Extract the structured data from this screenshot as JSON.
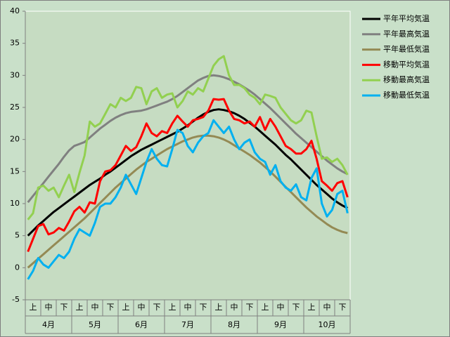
{
  "chart_data": {
    "type": "line",
    "categories": [
      null,
      "上",
      null,
      null,
      "中",
      null,
      null,
      "下",
      null,
      null,
      "上",
      null,
      null,
      "中",
      null,
      null,
      "下",
      null,
      null,
      "上",
      null,
      null,
      "中",
      null,
      null,
      "下",
      null,
      null,
      "上",
      null,
      null,
      "中",
      null,
      null,
      "下",
      null,
      null,
      "上",
      null,
      null,
      "中",
      null,
      null,
      "下",
      null,
      null,
      "上",
      null,
      null,
      "中",
      null,
      null,
      "下",
      null,
      null,
      "上",
      null,
      null,
      "中",
      null,
      null,
      "下",
      null
    ],
    "months": [
      "4月",
      "5月",
      "6月",
      "7月",
      "8月",
      "9月",
      "10月"
    ],
    "ylim": [
      -5,
      40
    ],
    "yticks": [
      -5,
      0,
      5,
      10,
      15,
      20,
      25,
      30,
      35,
      40
    ],
    "grid": false,
    "series": [
      {
        "name": "平年平均気温",
        "color": "#000000",
        "values": [
          5.0,
          5.8,
          6.6,
          7.3,
          8.0,
          8.7,
          9.3,
          9.9,
          10.5,
          11.1,
          11.7,
          12.3,
          12.9,
          13.4,
          13.9,
          14.5,
          15.0,
          15.6,
          16.2,
          16.8,
          17.4,
          17.9,
          18.4,
          18.8,
          19.2,
          19.6,
          20.0,
          20.4,
          20.8,
          21.2,
          21.7,
          22.2,
          22.8,
          23.4,
          23.9,
          24.3,
          24.6,
          24.7,
          24.6,
          24.4,
          24.1,
          23.7,
          23.2,
          22.6,
          22.0,
          21.3,
          20.6,
          19.9,
          19.2,
          18.4,
          17.6,
          16.9,
          16.1,
          15.3,
          14.5,
          13.7,
          12.9,
          12.2,
          11.5,
          10.8,
          10.2,
          9.7,
          9.3
        ]
      },
      {
        "name": "平年最高気温",
        "color": "#808080",
        "values": [
          10.2,
          11.2,
          12.2,
          13.2,
          14.2,
          15.2,
          16.2,
          17.3,
          18.3,
          19.0,
          19.3,
          19.6,
          20.3,
          21.0,
          21.7,
          22.3,
          22.9,
          23.4,
          23.8,
          24.1,
          24.3,
          24.4,
          24.5,
          24.7,
          25.0,
          25.3,
          25.6,
          25.9,
          26.3,
          26.8,
          27.4,
          28.0,
          28.6,
          29.2,
          29.6,
          29.9,
          30.0,
          29.9,
          29.7,
          29.4,
          29.0,
          28.6,
          28.1,
          27.6,
          27.0,
          26.3,
          25.6,
          24.9,
          24.1,
          23.3,
          22.5,
          21.7,
          20.9,
          20.2,
          19.5,
          18.8,
          18.1,
          17.4,
          16.7,
          16.1,
          15.5,
          15.0,
          14.6
        ]
      },
      {
        "name": "平年最低気温",
        "color": "#948a54",
        "values": [
          0.0,
          0.7,
          1.4,
          2.1,
          2.8,
          3.5,
          4.2,
          4.9,
          5.6,
          6.3,
          7.0,
          7.7,
          8.5,
          9.3,
          10.1,
          10.9,
          11.7,
          12.5,
          13.2,
          13.9,
          14.6,
          15.3,
          15.9,
          16.5,
          17.0,
          17.5,
          18.0,
          18.5,
          18.9,
          19.3,
          19.7,
          20.0,
          20.3,
          20.5,
          20.6,
          20.6,
          20.5,
          20.3,
          20.0,
          19.6,
          19.1,
          18.6,
          18.1,
          17.6,
          17.0,
          16.4,
          15.7,
          15.0,
          14.2,
          13.4,
          12.6,
          11.8,
          11.0,
          10.2,
          9.4,
          8.7,
          8.0,
          7.4,
          6.8,
          6.3,
          5.9,
          5.6,
          5.4
        ]
      },
      {
        "name": "移動平均気温",
        "color": "#ff0000",
        "values": [
          2.5,
          4.5,
          6.5,
          6.8,
          5.2,
          5.5,
          6.2,
          5.8,
          7.2,
          8.8,
          9.5,
          8.6,
          10.2,
          10.0,
          13.5,
          15.0,
          15.2,
          16.0,
          17.5,
          19.0,
          18.2,
          18.8,
          20.5,
          22.5,
          21.0,
          20.5,
          21.3,
          21.0,
          22.5,
          23.7,
          22.8,
          22.0,
          23.0,
          23.2,
          23.5,
          24.5,
          26.3,
          26.2,
          26.3,
          24.5,
          23.2,
          23.0,
          22.5,
          22.8,
          22.0,
          23.5,
          21.5,
          23.2,
          22.0,
          20.5,
          19.0,
          18.5,
          17.8,
          17.8,
          18.5,
          19.8,
          17.0,
          13.5,
          12.8,
          12.0,
          13.2,
          13.5,
          11.0
        ]
      },
      {
        "name": "移動最高気温",
        "color": "#92d050",
        "values": [
          7.5,
          8.5,
          12.5,
          12.8,
          12.0,
          12.5,
          11.0,
          12.8,
          14.5,
          11.8,
          14.8,
          17.5,
          22.8,
          22.0,
          22.5,
          24.0,
          25.5,
          25.0,
          26.5,
          26.0,
          26.5,
          28.2,
          28.0,
          25.5,
          27.5,
          28.0,
          26.5,
          27.0,
          27.2,
          25.0,
          26.0,
          27.5,
          27.0,
          28.0,
          27.5,
          29.5,
          31.5,
          32.5,
          33.0,
          30.0,
          28.5,
          28.5,
          28.0,
          27.0,
          26.5,
          25.5,
          27.0,
          26.8,
          26.5,
          25.0,
          24.0,
          23.0,
          22.5,
          23.0,
          24.5,
          24.2,
          20.5,
          17.0,
          17.2,
          16.5,
          17.0,
          16.0,
          14.5
        ]
      },
      {
        "name": "移動最低気温",
        "color": "#00b0f0",
        "values": [
          -1.8,
          -0.5,
          1.5,
          0.5,
          0.0,
          1.0,
          2.0,
          1.5,
          2.5,
          4.5,
          6.0,
          5.5,
          5.0,
          7.0,
          9.5,
          10.0,
          10.0,
          11.0,
          12.5,
          14.5,
          13.0,
          11.5,
          14.0,
          16.5,
          18.5,
          17.0,
          16.0,
          15.8,
          18.5,
          21.5,
          21.0,
          19.0,
          18.0,
          19.5,
          20.5,
          21.0,
          23.0,
          22.0,
          21.0,
          22.0,
          20.0,
          18.5,
          19.5,
          20.0,
          18.0,
          17.0,
          16.5,
          14.5,
          16.0,
          13.5,
          12.5,
          12.0,
          13.0,
          11.0,
          10.5,
          14.0,
          15.5,
          10.0,
          8.0,
          9.0,
          11.5,
          12.0,
          8.5
        ]
      }
    ]
  }
}
